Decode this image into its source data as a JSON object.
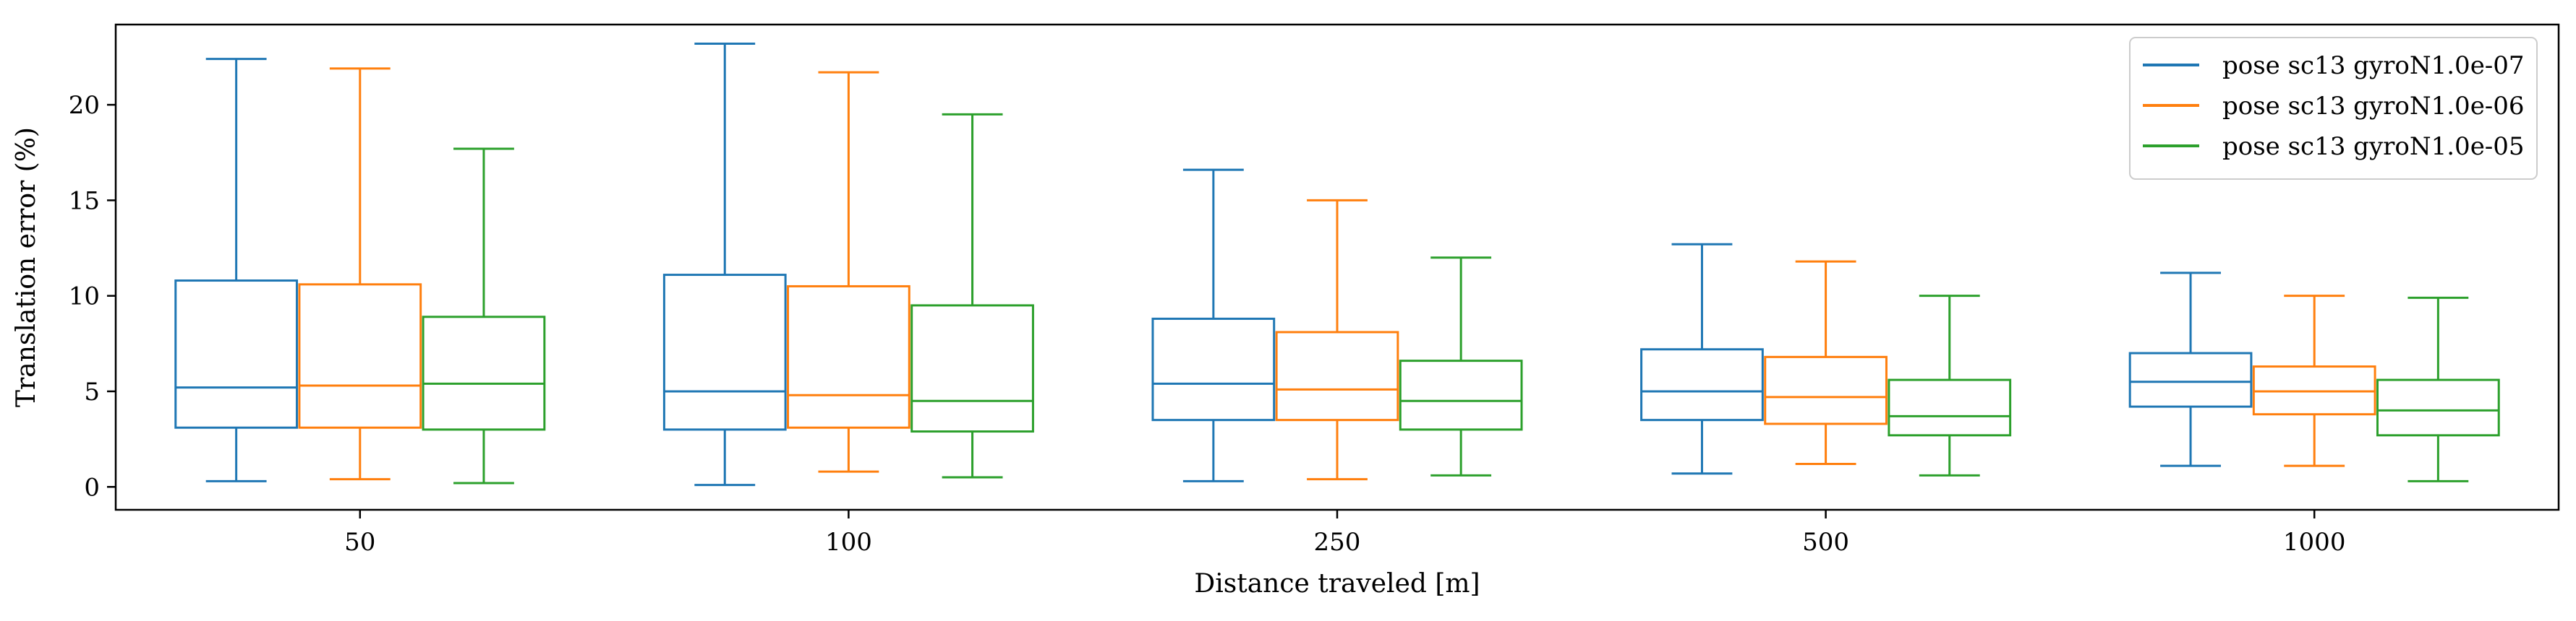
{
  "chart_data": {
    "type": "box",
    "xlabel": "Distance traveled [m]",
    "ylabel": "Translation error (%)",
    "categories": [
      "50",
      "100",
      "250",
      "500",
      "1000"
    ],
    "ylim": [
      -1.2,
      24.2
    ],
    "yticks": [
      0,
      5,
      10,
      15,
      20
    ],
    "grid": false,
    "legend_position": "top-right",
    "series": [
      {
        "name": "pose sc13 gyroN1.0e-07",
        "color": "#1f77b4",
        "boxes": [
          {
            "whislo": 0.3,
            "q1": 3.1,
            "med": 5.2,
            "q3": 10.8,
            "whishi": 22.4
          },
          {
            "whislo": 0.1,
            "q1": 3.0,
            "med": 5.0,
            "q3": 11.1,
            "whishi": 23.2
          },
          {
            "whislo": 0.3,
            "q1": 3.5,
            "med": 5.4,
            "q3": 8.8,
            "whishi": 16.6
          },
          {
            "whislo": 0.7,
            "q1": 3.5,
            "med": 5.0,
            "q3": 7.2,
            "whishi": 12.7
          },
          {
            "whislo": 1.1,
            "q1": 4.2,
            "med": 5.5,
            "q3": 7.0,
            "whishi": 11.2
          }
        ]
      },
      {
        "name": "pose sc13 gyroN1.0e-06",
        "color": "#ff7f0e",
        "boxes": [
          {
            "whislo": 0.4,
            "q1": 3.1,
            "med": 5.3,
            "q3": 10.6,
            "whishi": 21.9
          },
          {
            "whislo": 0.8,
            "q1": 3.1,
            "med": 4.8,
            "q3": 10.5,
            "whishi": 21.7
          },
          {
            "whislo": 0.4,
            "q1": 3.5,
            "med": 5.1,
            "q3": 8.1,
            "whishi": 15.0
          },
          {
            "whislo": 1.2,
            "q1": 3.3,
            "med": 4.7,
            "q3": 6.8,
            "whishi": 11.8
          },
          {
            "whislo": 1.1,
            "q1": 3.8,
            "med": 5.0,
            "q3": 6.3,
            "whishi": 10.0
          }
        ]
      },
      {
        "name": "pose sc13 gyroN1.0e-05",
        "color": "#2ca02c",
        "boxes": [
          {
            "whislo": 0.2,
            "q1": 3.0,
            "med": 5.4,
            "q3": 8.9,
            "whishi": 17.7
          },
          {
            "whislo": 0.5,
            "q1": 2.9,
            "med": 4.5,
            "q3": 9.5,
            "whishi": 19.5
          },
          {
            "whislo": 0.6,
            "q1": 3.0,
            "med": 4.5,
            "q3": 6.6,
            "whishi": 12.0
          },
          {
            "whislo": 0.6,
            "q1": 2.7,
            "med": 3.7,
            "q3": 5.6,
            "whishi": 10.0
          },
          {
            "whislo": 0.3,
            "q1": 2.7,
            "med": 4.0,
            "q3": 5.6,
            "whishi": 9.9
          }
        ]
      }
    ]
  }
}
